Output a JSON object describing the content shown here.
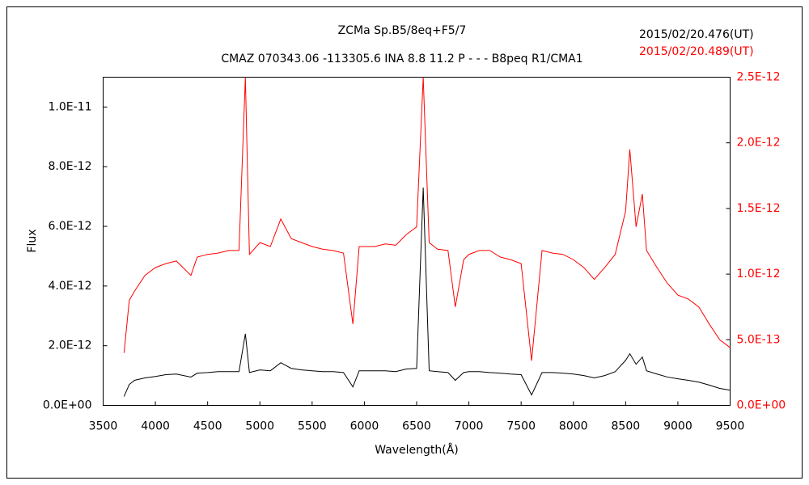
{
  "chart_data": {
    "type": "line",
    "title": "ZCMa   Sp.B5/8eq+F5/7",
    "subtitle": "CMAZ 070343.06 -113305.6 INA 8.8 11.2 P - - - B8peq R1/CMA1",
    "x_label": "Wavelength(Å)",
    "y_label": "Flux",
    "x": [
      3700,
      3750,
      3800,
      3900,
      4000,
      4100,
      4200,
      4340,
      4400,
      4500,
      4600,
      4700,
      4800,
      4861,
      4900,
      5000,
      5100,
      5200,
      5300,
      5400,
      5500,
      5600,
      5700,
      5800,
      5890,
      5950,
      6100,
      6200,
      6300,
      6400,
      6500,
      6563,
      6620,
      6700,
      6800,
      6870,
      6950,
      7000,
      7100,
      7200,
      7300,
      7400,
      7500,
      7600,
      7700,
      7800,
      7900,
      8000,
      8100,
      8200,
      8300,
      8400,
      8500,
      8540,
      8600,
      8660,
      8700,
      8800,
      8900,
      9000,
      9100,
      9200,
      9300,
      9400,
      9500
    ],
    "series": [
      {
        "name": "2015/02/20.489(UT)",
        "color": "#ff0000",
        "axis": "y2",
        "values": [
          4e-13,
          8e-13,
          8.7e-13,
          9.9e-13,
          1.05e-12,
          1.08e-12,
          1.1e-12,
          9.9e-13,
          1.13e-12,
          1.15e-12,
          1.16e-12,
          1.18e-12,
          1.18e-12,
          2.5e-12,
          1.15e-12,
          1.24e-12,
          1.21e-12,
          1.42e-12,
          1.27e-12,
          1.24e-12,
          1.21e-12,
          1.19e-12,
          1.18e-12,
          1.16e-12,
          6.2e-13,
          1.21e-12,
          1.21e-12,
          1.23e-12,
          1.22e-12,
          1.3e-12,
          1.36e-12,
          2.5e-12,
          1.24e-12,
          1.19e-12,
          1.18e-12,
          7.5e-13,
          1.11e-12,
          1.15e-12,
          1.18e-12,
          1.18e-12,
          1.13e-12,
          1.11e-12,
          1.08e-12,
          3.4e-13,
          1.18e-12,
          1.16e-12,
          1.15e-12,
          1.11e-12,
          1.05e-12,
          9.6e-13,
          1.05e-12,
          1.15e-12,
          1.48e-12,
          1.95e-12,
          1.36e-12,
          1.61e-12,
          1.18e-12,
          1.05e-12,
          9.3e-13,
          8.4e-13,
          8.1e-13,
          7.5e-13,
          6.2e-13,
          5e-13,
          4.4e-13
        ]
      },
      {
        "name": "2015/02/20.476(UT)",
        "color": "#000000",
        "axis": "y",
        "values": [
          3e-13,
          7e-13,
          8.4e-13,
          9.2e-13,
          9.7e-13,
          1.03e-12,
          1.05e-12,
          9.5e-13,
          1.08e-12,
          1.1e-12,
          1.13e-12,
          1.13e-12,
          1.13e-12,
          2.4e-12,
          1.1e-12,
          1.19e-12,
          1.16e-12,
          1.43e-12,
          1.24e-12,
          1.19e-12,
          1.16e-12,
          1.13e-12,
          1.13e-12,
          1.1e-12,
          6.2e-13,
          1.16e-12,
          1.16e-12,
          1.16e-12,
          1.13e-12,
          1.22e-12,
          1.24e-12,
          7.3e-12,
          1.16e-12,
          1.13e-12,
          1.1e-12,
          8.4e-13,
          1.1e-12,
          1.13e-12,
          1.13e-12,
          1.1e-12,
          1.08e-12,
          1.05e-12,
          1.03e-12,
          3.5e-13,
          1.1e-12,
          1.1e-12,
          1.08e-12,
          1.05e-12,
          1e-12,
          9.2e-13,
          1e-12,
          1.13e-12,
          1.51e-12,
          1.73e-12,
          1.38e-12,
          1.62e-12,
          1.16e-12,
          1.05e-12,
          9.5e-13,
          8.9e-13,
          8.4e-13,
          7.8e-13,
          6.8e-13,
          5.7e-13,
          5.1e-13
        ]
      }
    ],
    "xlim": [
      3500,
      9500
    ],
    "xticks": [
      3500,
      4000,
      4500,
      5000,
      5500,
      6000,
      6500,
      7000,
      7500,
      8000,
      8500,
      9000,
      9500
    ],
    "ylim": [
      0,
      1.1e-11
    ],
    "yticks": [
      {
        "value": 0,
        "label": "0.0E+00"
      },
      {
        "value": 2e-12,
        "label": "2.0E-12"
      },
      {
        "value": 4e-12,
        "label": "4.0E-12"
      },
      {
        "value": 6e-12,
        "label": "6.0E-12"
      },
      {
        "value": 8e-12,
        "label": "8.0E-12"
      },
      {
        "value": 1e-11,
        "label": "1.0E-11"
      }
    ],
    "y2lim": [
      0,
      2.5e-12
    ],
    "y2ticks": [
      {
        "value": 0,
        "label": "0.0E+00"
      },
      {
        "value": 5e-13,
        "label": "5.0E-13"
      },
      {
        "value": 1e-12,
        "label": "1.0E-12"
      },
      {
        "value": 1.5e-12,
        "label": "1.5E-12"
      },
      {
        "value": 2e-12,
        "label": "2.0E-12"
      },
      {
        "value": 2.5e-12,
        "label": "2.5E-12"
      }
    ],
    "y2_color": "#ff0000",
    "grid": false
  }
}
